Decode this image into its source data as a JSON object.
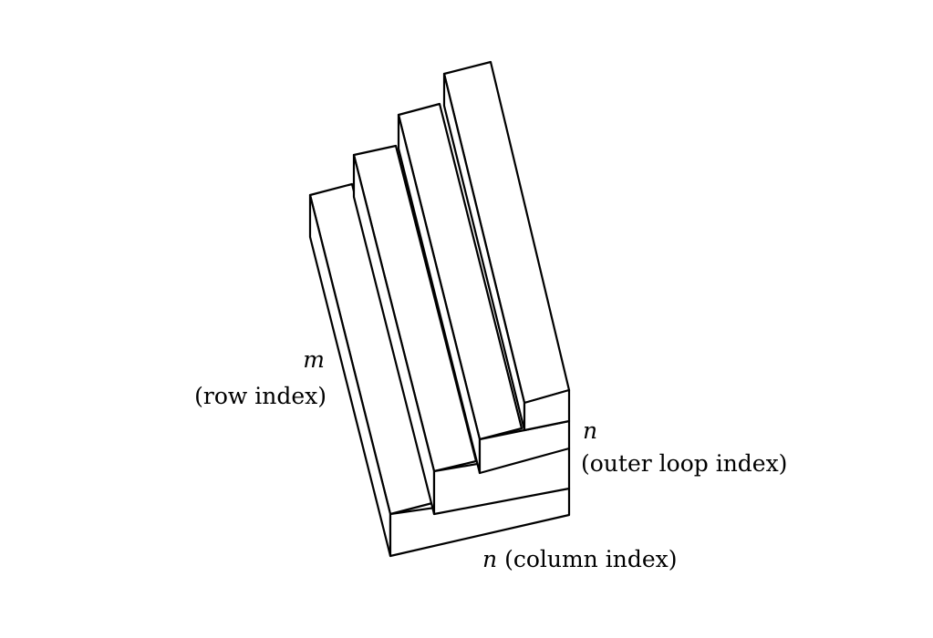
{
  "labels": {
    "row_var": "m",
    "row_text": "(row index)",
    "outer_var": "n",
    "outer_text": "(outer loop index)",
    "column_var": "n",
    "column_text": "(column index)"
  }
}
